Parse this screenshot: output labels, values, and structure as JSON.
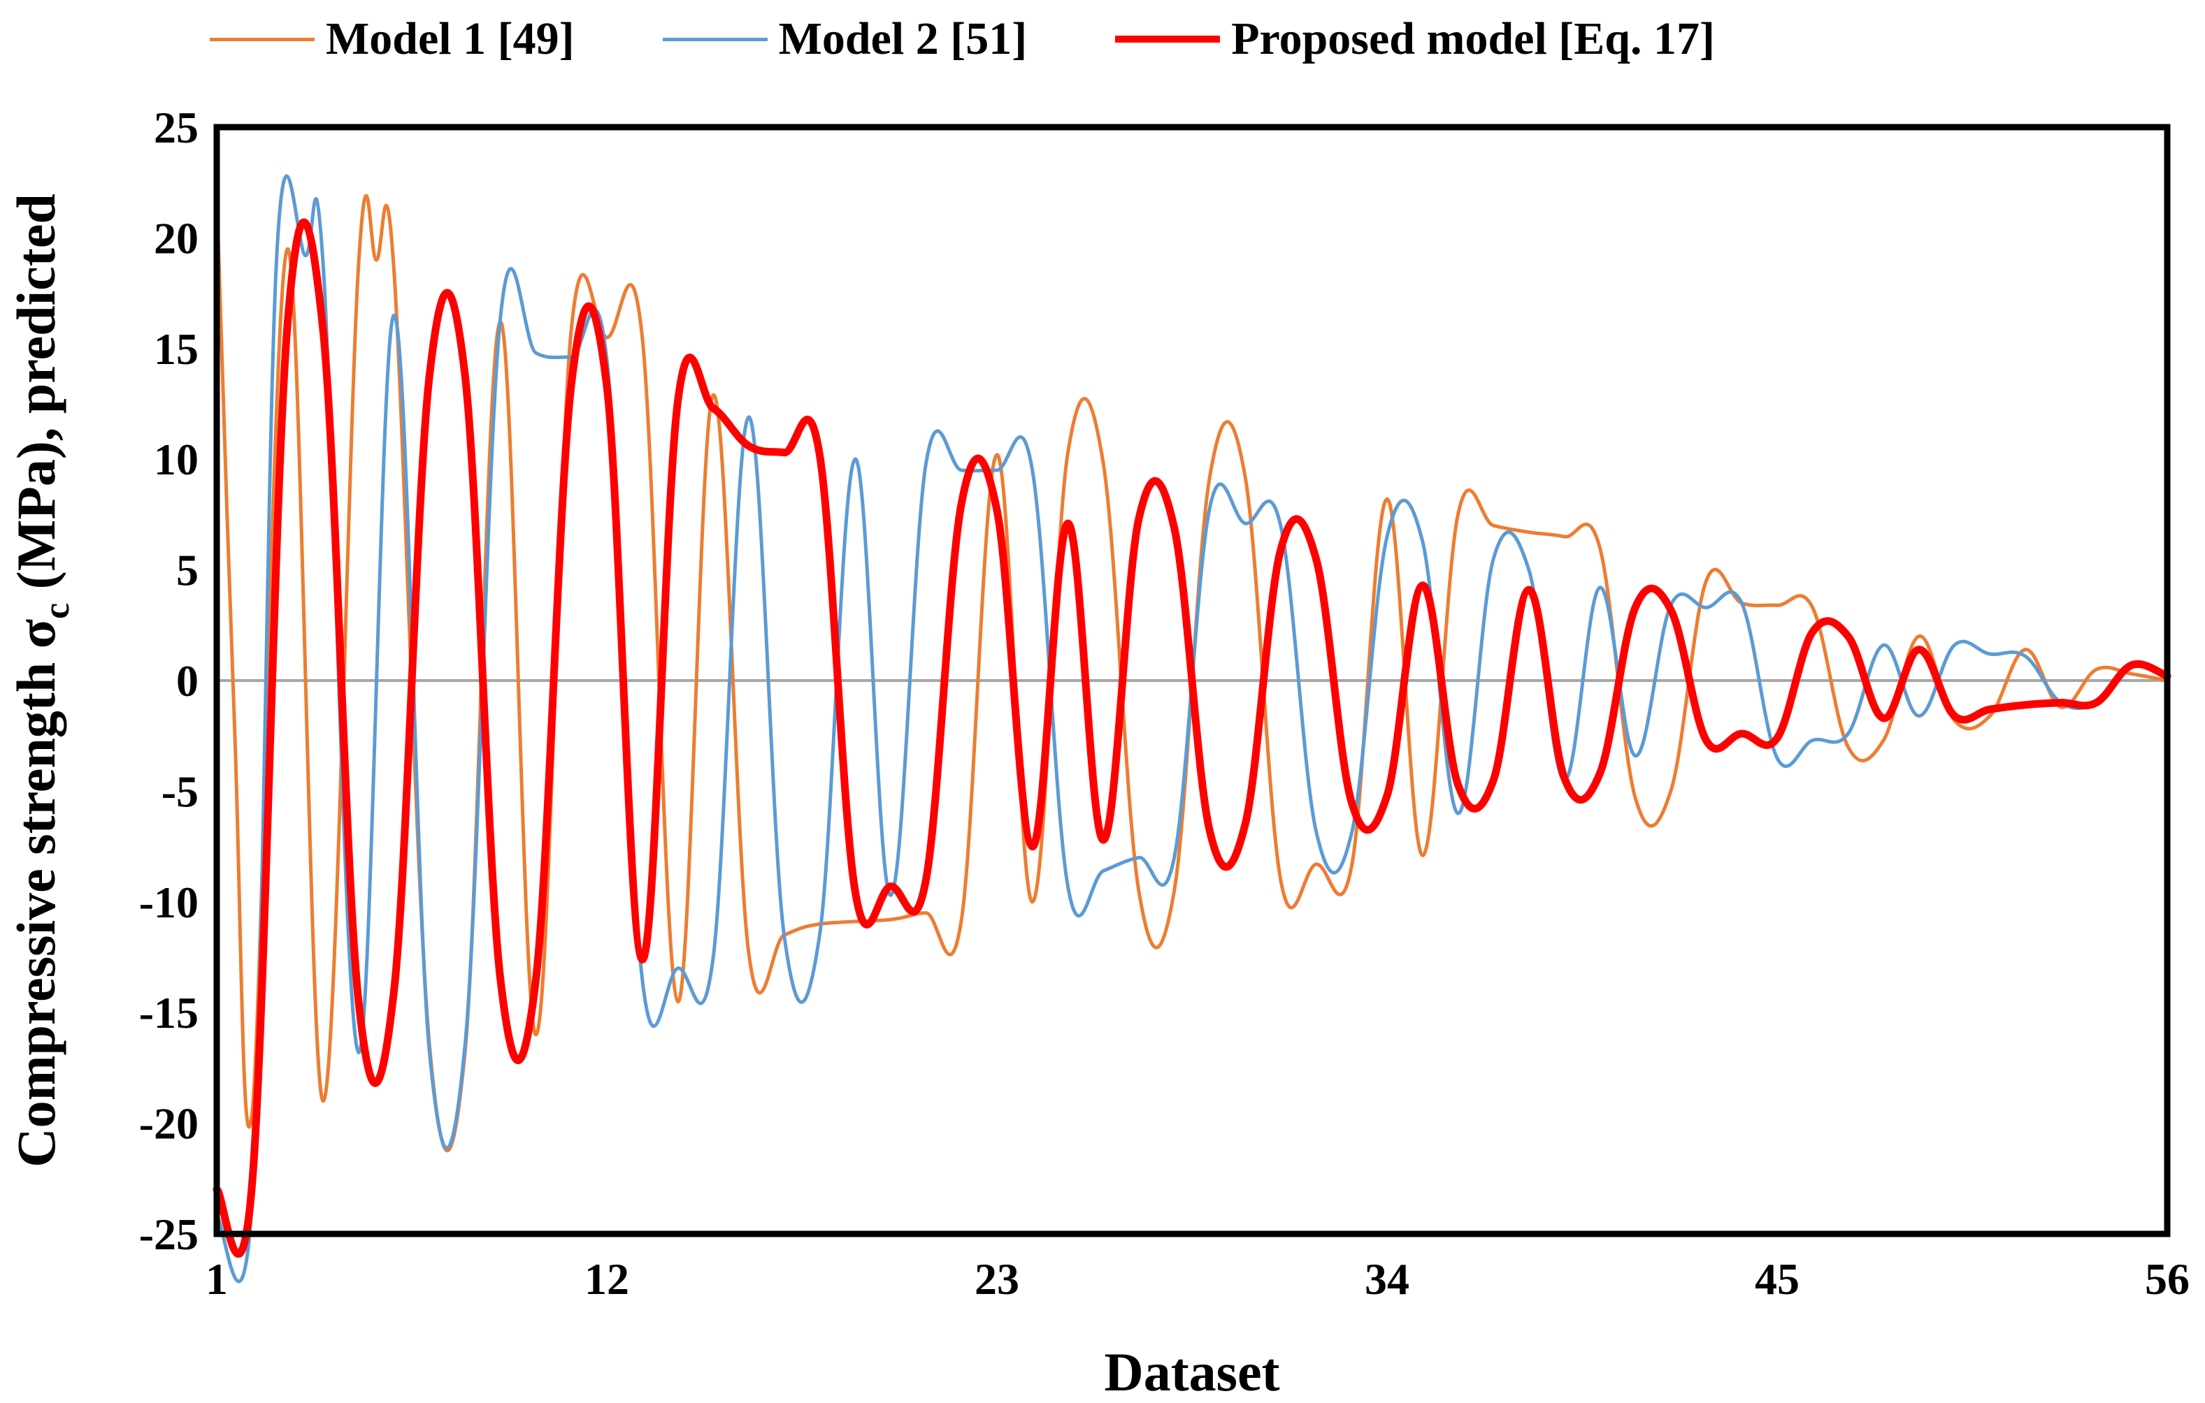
{
  "chart_data": {
    "type": "line",
    "title": "",
    "xlabel": "Dataset",
    "ylabel": "Compressive strength σc (MPa), predicted",
    "ylabel_parts": {
      "main": "Compressive strength σ",
      "sub": "c",
      "rest": " (MPa), predicted"
    },
    "xlim": [
      1,
      56
    ],
    "ylim": [
      -25,
      25
    ],
    "x_ticks": [
      1,
      12,
      23,
      34,
      45,
      56
    ],
    "y_ticks": [
      25,
      20,
      15,
      10,
      5,
      0,
      -5,
      -10,
      -15,
      -20,
      -25
    ],
    "legend_position": "top",
    "series": [
      {
        "name": "Model 1 [49]",
        "color": "#ED7D31",
        "points": [
          [
            1,
            22
          ],
          [
            1.5,
            -2
          ],
          [
            2,
            -19.5
          ],
          [
            3,
            19.5
          ],
          [
            4,
            -19
          ],
          [
            5,
            18.8
          ],
          [
            5.5,
            19
          ],
          [
            6,
            18.5
          ],
          [
            7,
            -16.5
          ],
          [
            8,
            -16.8
          ],
          [
            9,
            16.2
          ],
          [
            10,
            -16
          ],
          [
            11,
            15.9
          ],
          [
            12,
            15.5
          ],
          [
            13,
            15.5
          ],
          [
            14,
            -14.5
          ],
          [
            15,
            12.9
          ],
          [
            16,
            -12.3
          ],
          [
            17,
            -11.5
          ],
          [
            18,
            -11
          ],
          [
            20,
            -10.8
          ],
          [
            21,
            -10.5
          ],
          [
            22,
            -10.8
          ],
          [
            23,
            10.2
          ],
          [
            24,
            -10
          ],
          [
            25,
            10.3
          ],
          [
            26,
            9.8
          ],
          [
            27,
            -9.5
          ],
          [
            28,
            -9.5
          ],
          [
            29,
            9.2
          ],
          [
            30,
            9.2
          ],
          [
            31,
            -9
          ],
          [
            32,
            -8.3
          ],
          [
            33,
            -8.4
          ],
          [
            34,
            8.2
          ],
          [
            35,
            -7.9
          ],
          [
            36,
            7.5
          ],
          [
            37,
            7
          ],
          [
            38,
            6.7
          ],
          [
            39,
            6.5
          ],
          [
            40,
            6
          ],
          [
            41,
            -5.3
          ],
          [
            42,
            -5
          ],
          [
            43,
            4.5
          ],
          [
            44,
            3.5
          ],
          [
            45,
            3.4
          ],
          [
            46,
            3.3
          ],
          [
            47,
            -3
          ],
          [
            48,
            -2.7
          ],
          [
            49,
            2
          ],
          [
            50,
            -1.8
          ],
          [
            51,
            -1.6
          ],
          [
            52,
            1.4
          ],
          [
            53,
            -1.2
          ],
          [
            54,
            0.5
          ],
          [
            55,
            0.3
          ],
          [
            56,
            0
          ]
        ]
      },
      {
        "name": "Model 2 [51]",
        "color": "#5B9BD5",
        "points": [
          [
            1,
            -24.2
          ],
          [
            2,
            -23.5
          ],
          [
            2.7,
            19.4
          ],
          [
            3.5,
            19.2
          ],
          [
            4,
            18.8
          ],
          [
            5,
            -16.8
          ],
          [
            6,
            16.5
          ],
          [
            7,
            -16.8
          ],
          [
            8,
            -16.5
          ],
          [
            9,
            16.4
          ],
          [
            10,
            14.8
          ],
          [
            11,
            14.6
          ],
          [
            12,
            14.5
          ],
          [
            13,
            -13.5
          ],
          [
            14,
            -13
          ],
          [
            15,
            -12.5
          ],
          [
            16,
            11.9
          ],
          [
            17,
            -11.5
          ],
          [
            18,
            -11.5
          ],
          [
            19,
            10
          ],
          [
            20,
            -9.7
          ],
          [
            21,
            9.8
          ],
          [
            22,
            9.5
          ],
          [
            23,
            9.5
          ],
          [
            24,
            9.5
          ],
          [
            25,
            -9.3
          ],
          [
            26,
            -8.6
          ],
          [
            27,
            -8
          ],
          [
            28,
            -8
          ],
          [
            29,
            7.8
          ],
          [
            30,
            7.1
          ],
          [
            31,
            7
          ],
          [
            32,
            -6.8
          ],
          [
            33,
            -6.9
          ],
          [
            34,
            6.5
          ],
          [
            35,
            6.3
          ],
          [
            36,
            -6
          ],
          [
            37,
            5.5
          ],
          [
            38,
            5
          ],
          [
            39,
            -4.5
          ],
          [
            40,
            4.2
          ],
          [
            41,
            -3.4
          ],
          [
            42,
            3.4
          ],
          [
            43,
            3.3
          ],
          [
            44,
            3.5
          ],
          [
            45,
            -3.5
          ],
          [
            46,
            -2.7
          ],
          [
            47,
            -2.4
          ],
          [
            48,
            1.6
          ],
          [
            49,
            -1.6
          ],
          [
            50,
            1.6
          ],
          [
            51,
            1.2
          ],
          [
            52,
            1.1
          ],
          [
            53,
            -1
          ],
          [
            54,
            -1
          ],
          [
            55,
            0.6
          ],
          [
            56,
            0.2
          ]
        ]
      },
      {
        "name": "Proposed model [Eq. 17]",
        "color": "#FF0000",
        "points": [
          [
            1,
            -23
          ],
          [
            2,
            -22.7
          ],
          [
            3,
            16.2
          ],
          [
            4,
            15.8
          ],
          [
            5,
            -14.5
          ],
          [
            6,
            -14
          ],
          [
            7,
            13.8
          ],
          [
            8,
            13.8
          ],
          [
            9,
            -13.5
          ],
          [
            10,
            -13.5
          ],
          [
            11,
            13.4
          ],
          [
            12,
            13.3
          ],
          [
            13,
            -12.6
          ],
          [
            14,
            12.6
          ],
          [
            15,
            12.3
          ],
          [
            16,
            10.6
          ],
          [
            17,
            10.3
          ],
          [
            18,
            10.2
          ],
          [
            19,
            -9.5
          ],
          [
            20,
            -9.3
          ],
          [
            21,
            -9
          ],
          [
            22,
            8
          ],
          [
            23,
            7.7
          ],
          [
            24,
            -7.5
          ],
          [
            25,
            7.1
          ],
          [
            26,
            -7.2
          ],
          [
            27,
            7.3
          ],
          [
            28,
            6.9
          ],
          [
            29,
            -6.8
          ],
          [
            30,
            -6.5
          ],
          [
            31,
            5.9
          ],
          [
            32,
            5.5
          ],
          [
            33,
            -5.5
          ],
          [
            34,
            -5.2
          ],
          [
            35,
            4.3
          ],
          [
            36,
            -4.7
          ],
          [
            37,
            -4.5
          ],
          [
            38,
            4.1
          ],
          [
            39,
            -4.4
          ],
          [
            40,
            -4.2
          ],
          [
            41,
            3.3
          ],
          [
            42,
            3.2
          ],
          [
            43,
            -2.7
          ],
          [
            44,
            -2.4
          ],
          [
            45,
            -2.6
          ],
          [
            46,
            2.2
          ],
          [
            47,
            2
          ],
          [
            48,
            -1.7
          ],
          [
            49,
            1.4
          ],
          [
            50,
            -1.6
          ],
          [
            51,
            -1.3
          ],
          [
            52,
            -1.1
          ],
          [
            53,
            -1
          ],
          [
            54,
            -1
          ],
          [
            55,
            0.7
          ],
          [
            56,
            0.2
          ]
        ]
      }
    ]
  }
}
